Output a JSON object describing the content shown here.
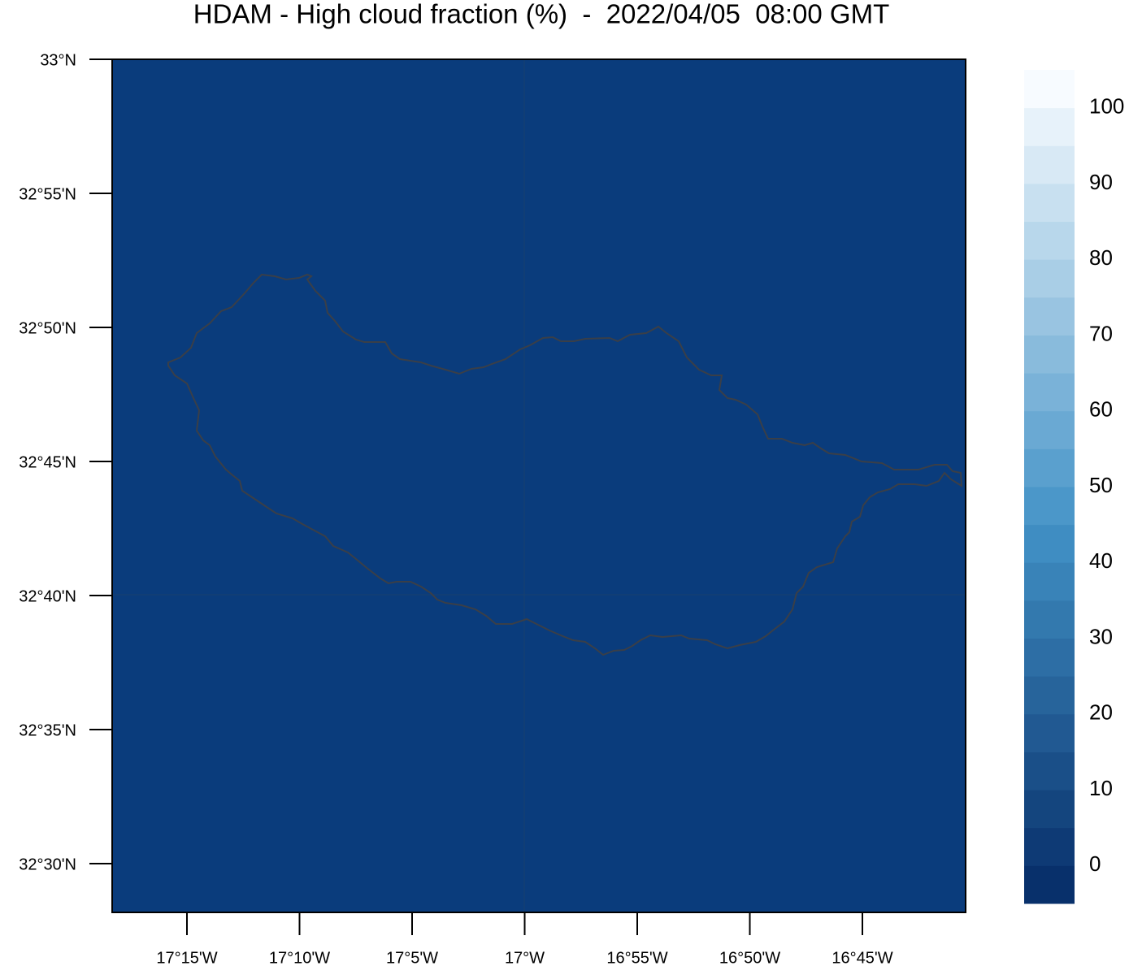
{
  "title": "HDAM - High cloud fraction (%)  -  2022/04/05  08:00 GMT",
  "map": {
    "lat_labels": [
      "33°N",
      "32°55'N",
      "32°50'N",
      "32°45'N",
      "32°40'N",
      "32°35'N",
      "32°30'N"
    ],
    "lon_labels": [
      "17°15'W",
      "17°10'W",
      "17°5'W",
      "17°W",
      "16°55'W",
      "16°50'W",
      "16°45'W"
    ]
  },
  "colorbar": {
    "labels": [
      0,
      10,
      20,
      30,
      40,
      50,
      60,
      70,
      80,
      90,
      100
    ]
  }
}
